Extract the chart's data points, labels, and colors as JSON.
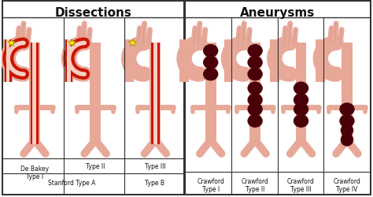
{
  "title_left": "Dissections",
  "title_right": "Aneurysms",
  "bg_color": "#ffffff",
  "panel_bg": "#ffffff",
  "border_color": "#333333",
  "skin_color": "#e8a898",
  "skin_light": "#f5cfc0",
  "red_color": "#cc1500",
  "dark_maroon": "#4a0008",
  "yellow_star": "#ffee00",
  "figsize": [
    4.74,
    2.5
  ],
  "dpi": 100,
  "dissection_types": [
    {
      "label": "De Bakey\nType I",
      "asc": true,
      "arch": true,
      "desc": true,
      "star": true
    },
    {
      "label": "Type II",
      "asc": true,
      "arch": true,
      "desc": false,
      "star": true
    },
    {
      "label": "Type III",
      "asc": false,
      "arch": false,
      "desc": true,
      "star": true
    }
  ],
  "stanford_a_label": "Stanford Type A",
  "stanford_b_label": "Type B",
  "aneurysm_types": [
    {
      "label": "Crawford\nType I",
      "thoracic": true,
      "upper_abd": false,
      "lower_abd": false,
      "infrarenal": false
    },
    {
      "label": "Crawford\nType II",
      "thoracic": true,
      "upper_abd": true,
      "lower_abd": true,
      "infrarenal": false
    },
    {
      "label": "Crawford\nType III",
      "thoracic": false,
      "upper_abd": true,
      "lower_abd": true,
      "infrarenal": false
    },
    {
      "label": "Crawford\nType IV",
      "thoracic": false,
      "upper_abd": false,
      "lower_abd": true,
      "infrarenal": true
    }
  ]
}
